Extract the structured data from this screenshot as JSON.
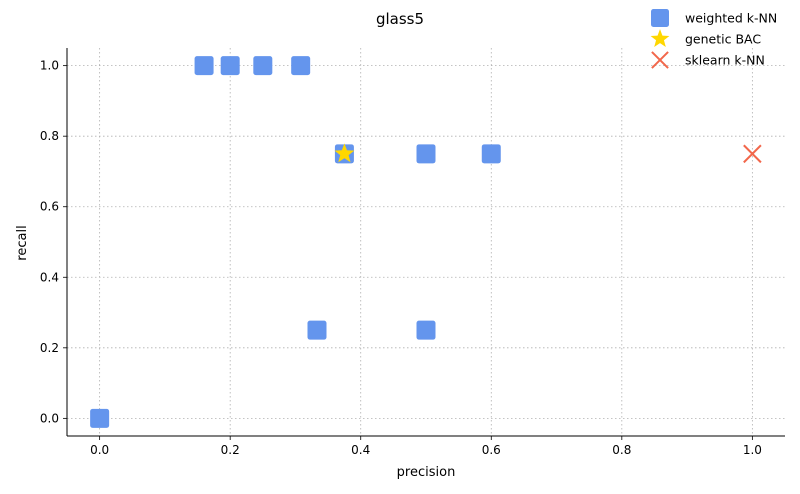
{
  "chart_data": {
    "type": "scatter",
    "title": "glass5",
    "xlabel": "precision",
    "ylabel": "recall",
    "xlim": [
      -0.05,
      1.05
    ],
    "ylim": [
      -0.05,
      1.05
    ],
    "xticks": [
      "0.0",
      "0.2",
      "0.4",
      "0.6",
      "0.8",
      "1.0"
    ],
    "yticks": [
      "0.0",
      "0.2",
      "0.4",
      "0.6",
      "0.8",
      "1.0"
    ],
    "grid": true,
    "legend_position": "top-right",
    "series": [
      {
        "name": "weighted k-NN",
        "marker": "square",
        "color": "#6495ED",
        "points": [
          {
            "x": 0.0,
            "y": 0.0
          },
          {
            "x": 0.16,
            "y": 1.0
          },
          {
            "x": 0.2,
            "y": 1.0
          },
          {
            "x": 0.25,
            "y": 1.0
          },
          {
            "x": 0.308,
            "y": 1.0
          },
          {
            "x": 0.375,
            "y": 0.75
          },
          {
            "x": 0.5,
            "y": 0.75
          },
          {
            "x": 0.6,
            "y": 0.75
          },
          {
            "x": 0.333,
            "y": 0.25
          },
          {
            "x": 0.5,
            "y": 0.25
          }
        ]
      },
      {
        "name": "genetic BAC",
        "marker": "star",
        "color": "#FFD700",
        "points": [
          {
            "x": 0.375,
            "y": 0.75
          }
        ]
      },
      {
        "name": "sklearn k-NN",
        "marker": "x",
        "color": "#F2674B",
        "points": [
          {
            "x": 1.0,
            "y": 0.75
          }
        ]
      }
    ]
  }
}
